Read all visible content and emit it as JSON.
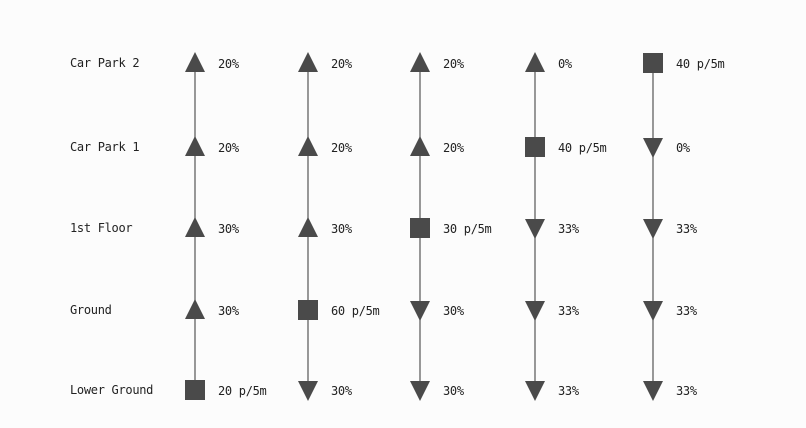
{
  "colors": {
    "marker": "#4a4a4a",
    "line": "#555555"
  },
  "floors": [
    "Car Park 2",
    "Car Park 1",
    "1st Floor",
    "Ground",
    "Lower Ground"
  ],
  "columns": [
    {
      "cells": [
        {
          "marker": "up-triangle",
          "value": "20%"
        },
        {
          "marker": "up-triangle",
          "value": "20%"
        },
        {
          "marker": "up-triangle",
          "value": "30%"
        },
        {
          "marker": "up-triangle",
          "value": "30%"
        },
        {
          "marker": "square",
          "value": "20 p/5m"
        }
      ]
    },
    {
      "cells": [
        {
          "marker": "up-triangle",
          "value": "20%"
        },
        {
          "marker": "up-triangle",
          "value": "20%"
        },
        {
          "marker": "up-triangle",
          "value": "30%"
        },
        {
          "marker": "square",
          "value": "60 p/5m"
        },
        {
          "marker": "down-triangle",
          "value": "30%"
        }
      ]
    },
    {
      "cells": [
        {
          "marker": "up-triangle",
          "value": "20%"
        },
        {
          "marker": "up-triangle",
          "value": "20%"
        },
        {
          "marker": "square",
          "value": "30 p/5m"
        },
        {
          "marker": "down-triangle",
          "value": "30%"
        },
        {
          "marker": "down-triangle",
          "value": "30%"
        }
      ]
    },
    {
      "cells": [
        {
          "marker": "up-triangle",
          "value": "0%"
        },
        {
          "marker": "square",
          "value": "40 p/5m"
        },
        {
          "marker": "down-triangle",
          "value": "33%"
        },
        {
          "marker": "down-triangle",
          "value": "33%"
        },
        {
          "marker": "down-triangle",
          "value": "33%"
        }
      ]
    },
    {
      "cells": [
        {
          "marker": "square",
          "value": "40 p/5m"
        },
        {
          "marker": "down-triangle",
          "value": "0%"
        },
        {
          "marker": "down-triangle",
          "value": "33%"
        },
        {
          "marker": "down-triangle",
          "value": "33%"
        },
        {
          "marker": "down-triangle",
          "value": "33%"
        }
      ]
    }
  ]
}
